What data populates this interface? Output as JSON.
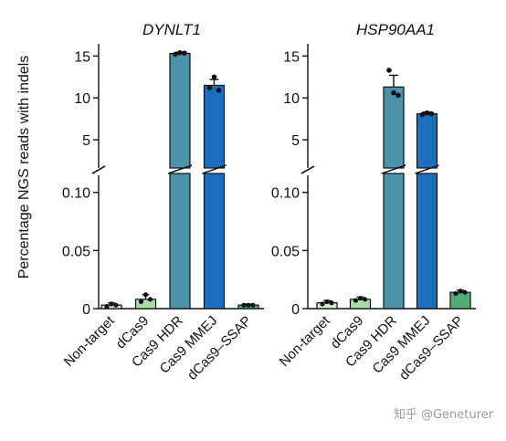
{
  "ylabel": "Percentage NGS reads with indels",
  "watermark": "知乎 @Geneturer",
  "chart_data": [
    {
      "type": "bar",
      "title": "DYNLT1",
      "categories": [
        "Non-target",
        "dCas9",
        "Cas9 HDR",
        "Cas9 MMEJ",
        "dCas9–SSAP"
      ],
      "colors": [
        "#d2ebcf",
        "#a8dba6",
        "#4b92ac",
        "#1c6fbd",
        "#4fae76"
      ],
      "values": [
        0.003,
        0.008,
        15.3,
        11.5,
        0.003
      ],
      "errors": [
        0.002,
        0.004,
        0.15,
        0.7,
        0.001
      ],
      "points": [
        [
          0.002,
          0.004,
          0.003
        ],
        [
          0.006,
          0.012,
          0.008
        ],
        [
          15.2,
          15.4,
          15.35
        ],
        [
          11.2,
          12.5,
          10.9
        ],
        [
          0.003,
          0.003,
          0.003
        ]
      ],
      "y_axis": {
        "broken": true,
        "lower": {
          "range": [
            0,
            0.11
          ],
          "ticks": [
            0,
            0.05,
            0.1
          ],
          "tick_labels": [
            "0",
            "0.05",
            "0.10"
          ]
        },
        "upper": {
          "range": [
            2.5,
            15.8
          ],
          "ticks": [
            5,
            10,
            15
          ],
          "tick_labels": [
            "5",
            "10",
            "15"
          ]
        }
      }
    },
    {
      "type": "bar",
      "title": "HSP90AA1",
      "categories": [
        "Non-target",
        "dCas9",
        "Cas9 HDR",
        "Cas9 MMEJ",
        "dCas9–SSAP"
      ],
      "colors": [
        "#d2ebcf",
        "#a8dba6",
        "#4b92ac",
        "#1c6fbd",
        "#4fae76"
      ],
      "values": [
        0.005,
        0.008,
        11.3,
        8.1,
        0.014
      ],
      "errors": [
        0.002,
        0.002,
        1.4,
        0.2,
        0.002
      ],
      "points": [
        [
          0.004,
          0.006,
          0.005
        ],
        [
          0.007,
          0.009,
          0.008
        ],
        [
          13.3,
          10.6,
          10.3
        ],
        [
          8.0,
          8.2,
          8.1
        ],
        [
          0.013,
          0.015,
          0.014
        ]
      ],
      "y_axis": {
        "broken": true,
        "lower": {
          "range": [
            0,
            0.11
          ],
          "ticks": [
            0,
            0.05,
            0.1
          ],
          "tick_labels": [
            "0",
            "0.05",
            "0.10"
          ]
        },
        "upper": {
          "range": [
            2.5,
            15.8
          ],
          "ticks": [
            5,
            10,
            15
          ],
          "tick_labels": [
            "5",
            "10",
            "15"
          ]
        }
      }
    }
  ]
}
